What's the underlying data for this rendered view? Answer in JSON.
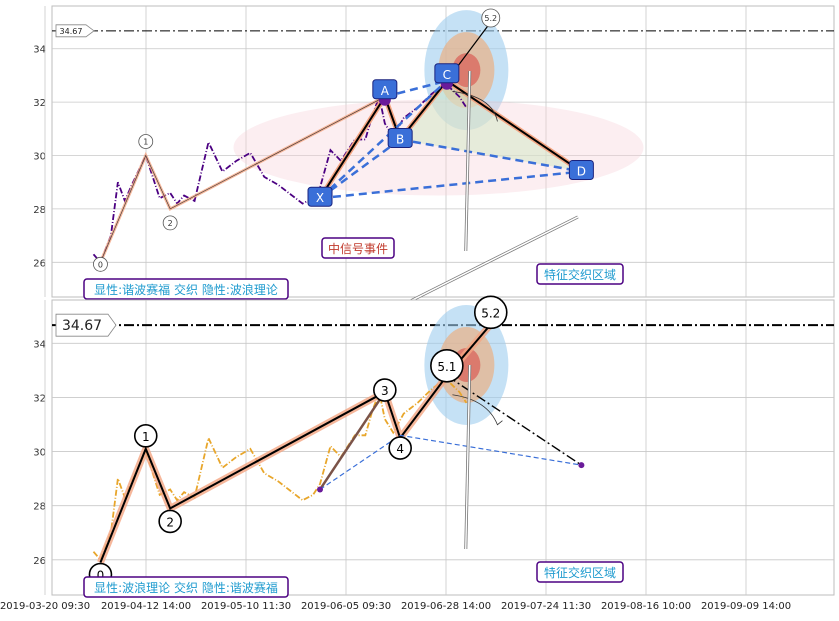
{
  "chart_data": [
    {
      "type": "line",
      "panel": "top",
      "ylim": [
        24.7,
        35.6
      ],
      "yticks": [
        26,
        28,
        30,
        32,
        34
      ],
      "grid": true,
      "ref_line": {
        "value": 34.67,
        "label": "34.67"
      },
      "price_series": {
        "name": "",
        "color": "#4b0082",
        "points": [
          [
            0.5,
            26.3
          ],
          [
            1.5,
            26.0
          ],
          [
            3.0,
            27.0
          ],
          [
            4.0,
            29.0
          ],
          [
            5.0,
            28.3
          ],
          [
            6.0,
            28.9
          ],
          [
            8.0,
            30.0
          ],
          [
            9.0,
            29.2
          ],
          [
            10.0,
            28.4
          ],
          [
            11.5,
            28.6
          ],
          [
            12.5,
            28.2
          ],
          [
            13.5,
            28.5
          ],
          [
            15.0,
            28.3
          ],
          [
            17.0,
            30.5
          ],
          [
            19.0,
            29.4
          ],
          [
            21.0,
            29.8
          ],
          [
            23.0,
            30.1
          ],
          [
            25.0,
            29.2
          ],
          [
            27.0,
            28.9
          ],
          [
            29.0,
            28.5
          ],
          [
            30.5,
            28.2
          ],
          [
            32.0,
            28.4
          ],
          [
            33.0,
            28.8
          ],
          [
            34.5,
            30.2
          ],
          [
            36.0,
            29.8
          ],
          [
            38.0,
            30.6
          ],
          [
            39.5,
            30.6
          ],
          [
            40.5,
            31.5
          ],
          [
            41.5,
            32.2
          ],
          [
            42.3,
            31.2
          ],
          [
            43.5,
            30.7
          ],
          [
            45.0,
            31.4
          ],
          [
            47.0,
            31.8
          ],
          [
            49.0,
            32.3
          ],
          [
            51.0,
            32.7
          ],
          [
            53.0,
            32.2
          ],
          [
            54.0,
            31.8
          ]
        ]
      },
      "wave_points": [
        {
          "label": "0",
          "x": 1.5,
          "y": 26.0
        },
        {
          "label": "1",
          "x": 8.0,
          "y": 30.0
        },
        {
          "label": "2",
          "x": 11.5,
          "y": 28.0
        },
        {
          "label": "A",
          "x": 42.3,
          "y": 32.2
        },
        {
          "label": "X",
          "x": 33.0,
          "y": 28.4
        },
        {
          "label": "B",
          "x": 44.5,
          "y": 30.6
        },
        {
          "label": "C",
          "x": 51.2,
          "y": 32.8
        },
        {
          "label": "D",
          "x": 70.5,
          "y": 29.4
        },
        {
          "label": "5.2",
          "x": 57.5,
          "y": 35.0
        }
      ],
      "annotations": {
        "signal": "中信号事件",
        "zone": "特征交织区域",
        "legend": "显性:谐波赛福 交织 隐性:波浪理论"
      }
    },
    {
      "type": "line",
      "panel": "bottom",
      "ylim": [
        24.7,
        35.6
      ],
      "yticks": [
        26,
        28,
        30,
        32,
        34
      ],
      "grid": true,
      "ref_line": {
        "value": 34.67,
        "label": "34.67"
      },
      "price_series": {
        "name": "",
        "color": "#e8a62b",
        "points": [
          [
            0.5,
            26.3
          ],
          [
            1.5,
            26.0
          ],
          [
            3.0,
            27.0
          ],
          [
            4.0,
            29.0
          ],
          [
            5.0,
            28.3
          ],
          [
            6.0,
            28.9
          ],
          [
            8.0,
            30.0
          ],
          [
            9.0,
            29.2
          ],
          [
            10.0,
            28.4
          ],
          [
            11.5,
            28.6
          ],
          [
            12.5,
            28.2
          ],
          [
            13.5,
            28.5
          ],
          [
            15.0,
            28.3
          ],
          [
            17.0,
            30.5
          ],
          [
            19.0,
            29.4
          ],
          [
            21.0,
            29.8
          ],
          [
            23.0,
            30.1
          ],
          [
            25.0,
            29.2
          ],
          [
            27.0,
            28.9
          ],
          [
            29.0,
            28.5
          ],
          [
            30.5,
            28.2
          ],
          [
            32.0,
            28.4
          ],
          [
            33.0,
            28.8
          ],
          [
            34.5,
            30.2
          ],
          [
            36.0,
            29.8
          ],
          [
            38.0,
            30.6
          ],
          [
            39.5,
            30.6
          ],
          [
            40.5,
            31.5
          ],
          [
            41.5,
            32.2
          ],
          [
            42.3,
            31.2
          ],
          [
            43.5,
            30.7
          ],
          [
            45.0,
            31.4
          ],
          [
            47.0,
            31.8
          ],
          [
            49.0,
            32.3
          ],
          [
            51.0,
            32.7
          ],
          [
            53.0,
            32.2
          ],
          [
            54.0,
            31.8
          ]
        ]
      },
      "wave_points": [
        {
          "label": "0",
          "x": 1.5,
          "y": 25.9
        },
        {
          "label": "1",
          "x": 8.0,
          "y": 30.1
        },
        {
          "label": "2",
          "x": 11.5,
          "y": 27.9
        },
        {
          "label": "3",
          "x": 42.3,
          "y": 32.2
        },
        {
          "label": "4",
          "x": 44.5,
          "y": 30.5
        },
        {
          "label": "5.1",
          "x": 51.2,
          "y": 32.8
        },
        {
          "label": "5.2",
          "x": 57.5,
          "y": 34.7
        }
      ],
      "annotations": {
        "zone": "特征交织区域",
        "legend": "显性:波浪理论 交织 隐性:谐波赛福"
      }
    }
  ],
  "x_axis": {
    "tick_labels": [
      "2019-03-20 09:30",
      "2019-04-12 14:00",
      "2019-05-10 11:30",
      "2019-06-05 09:30",
      "2019-06-28 14:00",
      "2019-07-24 11:30",
      "2019-08-16 10:00",
      "2019-09-09 14:00"
    ]
  },
  "colors": {
    "grid": "#c8c8c8",
    "wave_highlight": "#f4a582",
    "harmonic_dash": "#3a6fd8",
    "node_fill": "#3a6fd8",
    "label_border": "#4b0082",
    "legend_text": "#1f9bcf",
    "signal_text": "#c0392b"
  }
}
